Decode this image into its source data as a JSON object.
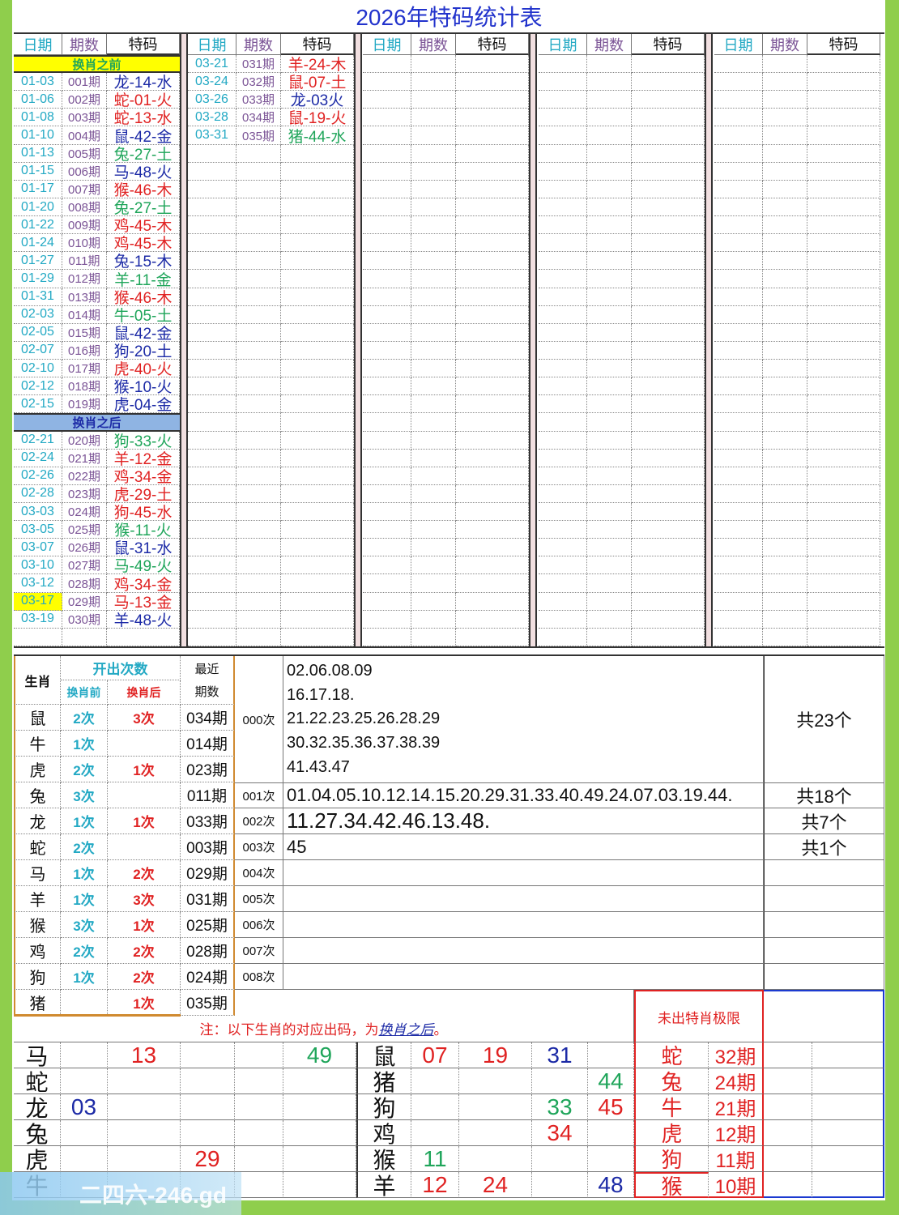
{
  "title": "2026年特码统计表",
  "headers": {
    "date": "日期",
    "period": "期数",
    "code": "特码"
  },
  "colors": {
    "blue": "#1c2aa6",
    "red": "#e02222",
    "green": "#1fa55a",
    "date": "#23a9c4",
    "period": "#7b5496",
    "before_bg": "#ffff00",
    "after_bg": "#8fb4e3",
    "background": "#8fce4c"
  },
  "panels": [
    {
      "sections": [
        {
          "label": "换肖之前",
          "bg": "#ffff00",
          "rows": [
            {
              "date": "01-03",
              "period": "001期",
              "code": "龙-14-水",
              "color": "blue"
            },
            {
              "date": "01-06",
              "period": "002期",
              "code": "蛇-01-火",
              "color": "red"
            },
            {
              "date": "01-08",
              "period": "003期",
              "code": "蛇-13-水",
              "color": "red"
            },
            {
              "date": "01-10",
              "period": "004期",
              "code": "鼠-42-金",
              "color": "blue"
            },
            {
              "date": "01-13",
              "period": "005期",
              "code": "兔-27-土",
              "color": "green"
            },
            {
              "date": "01-15",
              "period": "006期",
              "code": "马-48-火",
              "color": "blue"
            },
            {
              "date": "01-17",
              "period": "007期",
              "code": "猴-46-木",
              "color": "red"
            },
            {
              "date": "01-20",
              "period": "008期",
              "code": "兔-27-土",
              "color": "green"
            },
            {
              "date": "01-22",
              "period": "009期",
              "code": "鸡-45-木",
              "color": "red"
            },
            {
              "date": "01-24",
              "period": "010期",
              "code": "鸡-45-木",
              "color": "red"
            },
            {
              "date": "01-27",
              "period": "011期",
              "code": "兔-15-木",
              "color": "blue"
            },
            {
              "date": "01-29",
              "period": "012期",
              "code": "羊-11-金",
              "color": "green"
            },
            {
              "date": "01-31",
              "period": "013期",
              "code": "猴-46-木",
              "color": "red"
            },
            {
              "date": "02-03",
              "period": "014期",
              "code": "牛-05-土",
              "color": "green"
            },
            {
              "date": "02-05",
              "period": "015期",
              "code": "鼠-42-金",
              "color": "blue"
            },
            {
              "date": "02-07",
              "period": "016期",
              "code": "狗-20-土",
              "color": "blue"
            },
            {
              "date": "02-10",
              "period": "017期",
              "code": "虎-40-火",
              "color": "red"
            },
            {
              "date": "02-12",
              "period": "018期",
              "code": "猴-10-火",
              "color": "blue"
            },
            {
              "date": "02-15",
              "period": "019期",
              "code": "虎-04-金",
              "color": "blue"
            }
          ]
        },
        {
          "label": "换肖之后",
          "bg": "#8fb4e3",
          "rows": [
            {
              "date": "02-21",
              "period": "020期",
              "code": "狗-33-火",
              "color": "green"
            },
            {
              "date": "02-24",
              "period": "021期",
              "code": "羊-12-金",
              "color": "red"
            },
            {
              "date": "02-26",
              "period": "022期",
              "code": "鸡-34-金",
              "color": "red"
            },
            {
              "date": "02-28",
              "period": "023期",
              "code": "虎-29-土",
              "color": "red"
            },
            {
              "date": "03-03",
              "period": "024期",
              "code": "狗-45-水",
              "color": "red"
            },
            {
              "date": "03-05",
              "period": "025期",
              "code": "猴-11-火",
              "color": "green"
            },
            {
              "date": "03-07",
              "period": "026期",
              "code": "鼠-31-水",
              "color": "blue"
            },
            {
              "date": "03-10",
              "period": "027期",
              "code": "马-49-火",
              "color": "green"
            },
            {
              "date": "03-12",
              "period": "028期",
              "code": "鸡-34-金",
              "color": "red"
            },
            {
              "date": "03-17",
              "period": "029期",
              "code": "马-13-金",
              "color": "red",
              "highlight": "#ffff00"
            },
            {
              "date": "03-19",
              "period": "030期",
              "code": "羊-48-火",
              "color": "blue"
            }
          ]
        }
      ]
    },
    {
      "sections": [
        {
          "rows": [
            {
              "date": "03-21",
              "period": "031期",
              "code": "羊-24-木",
              "color": "red"
            },
            {
              "date": "03-24",
              "period": "032期",
              "code": "鼠-07-土",
              "color": "red"
            },
            {
              "date": "03-26",
              "period": "033期",
              "code": "龙-03火",
              "color": "blue"
            },
            {
              "date": "03-28",
              "period": "034期",
              "code": "鼠-19-火",
              "color": "red"
            },
            {
              "date": "03-31",
              "period": "035期",
              "code": "猪-44-水",
              "color": "green"
            }
          ]
        }
      ]
    },
    {
      "sections": []
    },
    {
      "sections": []
    },
    {
      "sections": []
    }
  ],
  "stats": {
    "zodiac_header": "生肖",
    "count_header": "开出次数",
    "before_header": "换肖前",
    "after_header": "换肖后",
    "recent_header_1": "最近",
    "recent_header_2": "期数",
    "rows": [
      {
        "zodiac": "鼠",
        "before": "2次",
        "after": "3次",
        "recent": "034期"
      },
      {
        "zodiac": "牛",
        "before": "1次",
        "after": "",
        "recent": "014期"
      },
      {
        "zodiac": "虎",
        "before": "2次",
        "after": "1次",
        "recent": "023期"
      },
      {
        "zodiac": "兔",
        "before": "3次",
        "after": "",
        "recent": "011期"
      },
      {
        "zodiac": "龙",
        "before": "1次",
        "after": "1次",
        "recent": "033期"
      },
      {
        "zodiac": "蛇",
        "before": "2次",
        "after": "",
        "recent": "003期"
      },
      {
        "zodiac": "马",
        "before": "1次",
        "after": "2次",
        "recent": "029期"
      },
      {
        "zodiac": "羊",
        "before": "1次",
        "after": "3次",
        "recent": "031期"
      },
      {
        "zodiac": "猴",
        "before": "3次",
        "after": "1次",
        "recent": "025期"
      },
      {
        "zodiac": "鸡",
        "before": "2次",
        "after": "2次",
        "recent": "028期"
      },
      {
        "zodiac": "狗",
        "before": "1次",
        "after": "2次",
        "recent": "024期"
      },
      {
        "zodiac": "猪",
        "before": "",
        "after": "1次",
        "recent": "035期"
      }
    ]
  },
  "frequency": [
    {
      "label": "000次",
      "lines": [
        "02.06.08.09",
        "16.17.18.",
        "21.22.23.25.26.28.29",
        "30.32.35.36.37.38.39",
        "41.43.47"
      ],
      "total": "共23个"
    },
    {
      "label": "001次",
      "lines": [
        "01.04.05.10.12.14.15.20.29.31.33.40.49.24.07.03.19.44."
      ],
      "total": "共18个"
    },
    {
      "label": "002次",
      "lines": [
        "11.27.34.42.46.13.48."
      ],
      "total": "共7个"
    },
    {
      "label": "003次",
      "lines": [
        "45"
      ],
      "total": "共1个"
    },
    {
      "label": "004次",
      "lines": [],
      "total": ""
    },
    {
      "label": "005次",
      "lines": [],
      "total": ""
    },
    {
      "label": "006次",
      "lines": [],
      "total": ""
    },
    {
      "label": "007次",
      "lines": [],
      "total": ""
    },
    {
      "label": "008次",
      "lines": [],
      "total": ""
    }
  ],
  "note": {
    "prefix": "注：以下生肖的对应出码，为",
    "link": "换肖之后",
    "suffix": "。"
  },
  "limit": {
    "title": "未出特肖极限",
    "rows": [
      {
        "zodiac": "蛇",
        "periods": "32期"
      },
      {
        "zodiac": "兔",
        "periods": "24期"
      },
      {
        "zodiac": "牛",
        "periods": "21期"
      },
      {
        "zodiac": "虎",
        "periods": "12期"
      },
      {
        "zodiac": "狗",
        "periods": "11期"
      },
      {
        "zodiac": "猴",
        "periods": "10期"
      }
    ]
  },
  "mapping": {
    "left": [
      {
        "zodiac": "马",
        "cells": [
          {
            "v": "",
            "c": ""
          },
          {
            "v": "13",
            "c": "red"
          },
          {
            "v": "",
            "c": ""
          },
          {
            "v": "",
            "c": ""
          },
          {
            "v": "49",
            "c": "green"
          }
        ]
      },
      {
        "zodiac": "蛇",
        "cells": [
          {
            "v": "",
            "c": ""
          },
          {
            "v": "",
            "c": ""
          },
          {
            "v": "",
            "c": ""
          },
          {
            "v": "",
            "c": ""
          },
          {
            "v": "",
            "c": ""
          }
        ]
      },
      {
        "zodiac": "龙",
        "cells": [
          {
            "v": "03",
            "c": "blue"
          },
          {
            "v": "",
            "c": ""
          },
          {
            "v": "",
            "c": ""
          },
          {
            "v": "",
            "c": ""
          },
          {
            "v": "",
            "c": ""
          }
        ]
      },
      {
        "zodiac": "兔",
        "cells": [
          {
            "v": "",
            "c": ""
          },
          {
            "v": "",
            "c": ""
          },
          {
            "v": "",
            "c": ""
          },
          {
            "v": "",
            "c": ""
          },
          {
            "v": "",
            "c": ""
          }
        ]
      },
      {
        "zodiac": "虎",
        "cells": [
          {
            "v": "",
            "c": ""
          },
          {
            "v": "",
            "c": ""
          },
          {
            "v": "29",
            "c": "red"
          },
          {
            "v": "",
            "c": ""
          },
          {
            "v": "",
            "c": ""
          }
        ]
      },
      {
        "zodiac": "牛",
        "cells": [
          {
            "v": "",
            "c": ""
          },
          {
            "v": "",
            "c": ""
          },
          {
            "v": "",
            "c": ""
          },
          {
            "v": "",
            "c": ""
          },
          {
            "v": "",
            "c": ""
          }
        ]
      }
    ],
    "right": [
      {
        "zodiac": "鼠",
        "cells": [
          {
            "v": "07",
            "c": "red"
          },
          {
            "v": "19",
            "c": "red"
          },
          {
            "v": "31",
            "c": "blue"
          },
          {
            "v": "",
            "c": ""
          }
        ]
      },
      {
        "zodiac": "猪",
        "cells": [
          {
            "v": "",
            "c": ""
          },
          {
            "v": "",
            "c": ""
          },
          {
            "v": "",
            "c": ""
          },
          {
            "v": "44",
            "c": "green"
          }
        ]
      },
      {
        "zodiac": "狗",
        "cells": [
          {
            "v": "",
            "c": ""
          },
          {
            "v": "",
            "c": ""
          },
          {
            "v": "33",
            "c": "green"
          },
          {
            "v": "45",
            "c": "red"
          }
        ]
      },
      {
        "zodiac": "鸡",
        "cells": [
          {
            "v": "",
            "c": ""
          },
          {
            "v": "",
            "c": ""
          },
          {
            "v": "34",
            "c": "red"
          },
          {
            "v": "",
            "c": ""
          }
        ]
      },
      {
        "zodiac": "猴",
        "cells": [
          {
            "v": "11",
            "c": "green"
          },
          {
            "v": "",
            "c": ""
          },
          {
            "v": "",
            "c": ""
          },
          {
            "v": "",
            "c": ""
          }
        ]
      },
      {
        "zodiac": "羊",
        "cells": [
          {
            "v": "12",
            "c": "red"
          },
          {
            "v": "24",
            "c": "red"
          },
          {
            "v": "",
            "c": ""
          },
          {
            "v": "48",
            "c": "blue"
          }
        ]
      }
    ]
  },
  "watermark": "二四六-246.gd"
}
